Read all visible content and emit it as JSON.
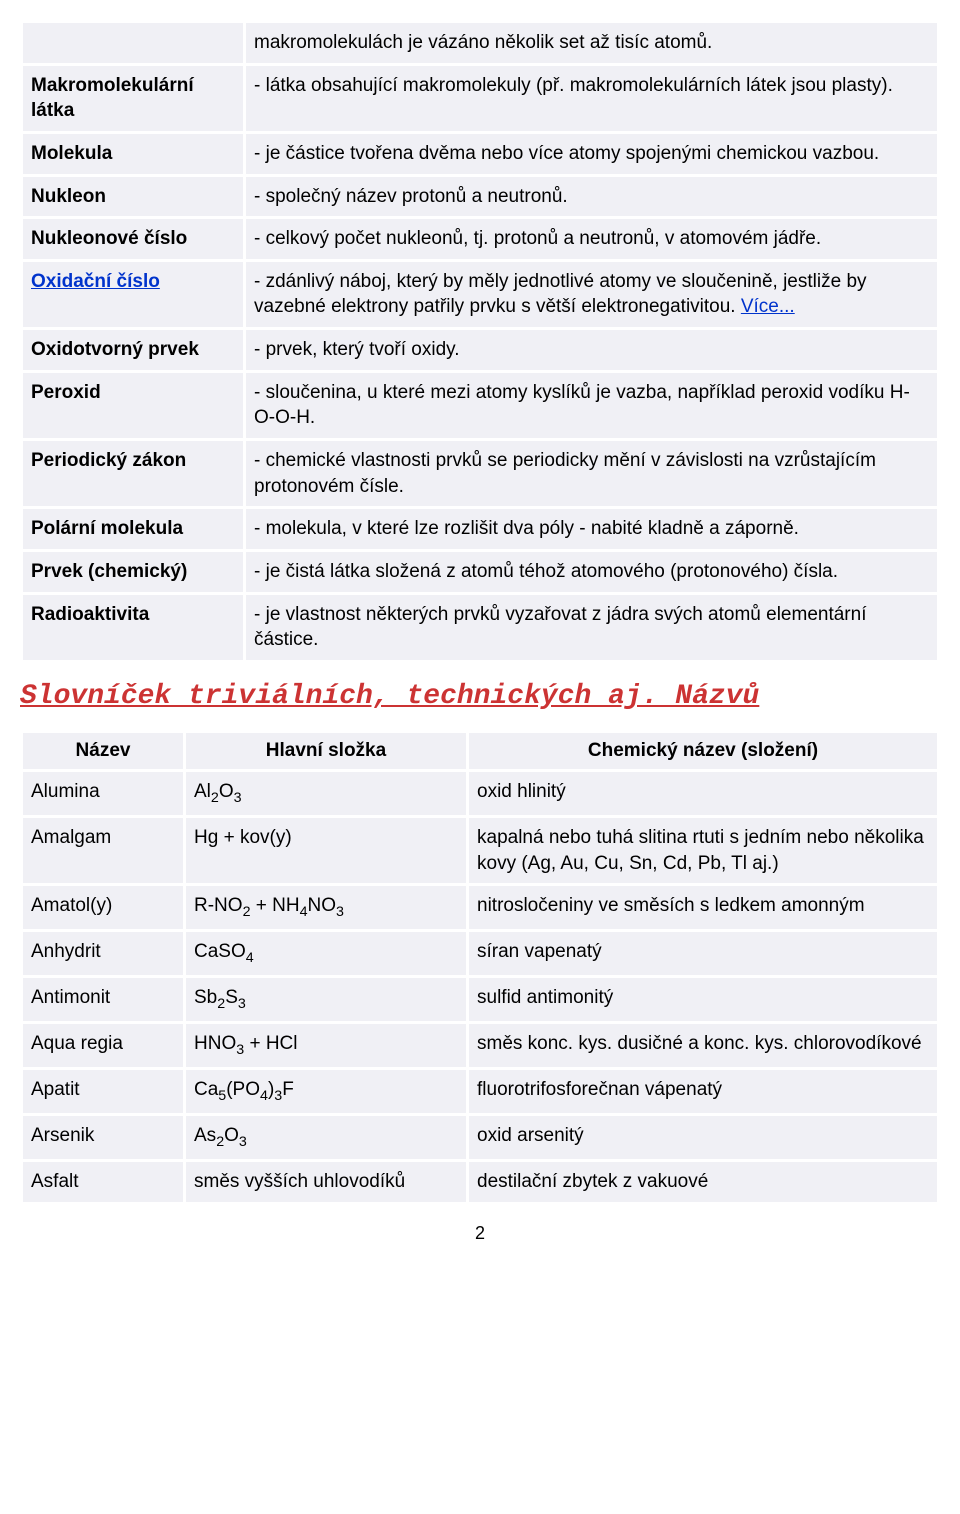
{
  "definitions": [
    {
      "term": "",
      "def": "makromolekulách je vázáno několik set až tisíc atomů.",
      "termEmpty": true
    },
    {
      "term": "Makromolekulární látka",
      "def": "- látka obsahující makromolekuly (př. makromolekulárních látek jsou plasty)."
    },
    {
      "term": "Molekula",
      "def": "- je částice tvořena dvěma nebo více atomy spojenými chemickou vazbou."
    },
    {
      "term": "Nukleon",
      "def": "- společný název protonů a neutronů."
    },
    {
      "term": "Nukleonové číslo",
      "def": "- celkový počet nukleonů, tj. protonů a neutronů, v atomovém jádře."
    },
    {
      "term": "Oxidační číslo",
      "termLink": true,
      "def": "- zdánlivý náboj, který by měly jednotlivé atomy ve sloučenině, jestliže by vazebné elektrony patřily prvku s větší elektronegativitou. ",
      "suffixLink": "Více..."
    },
    {
      "term": "Oxidotvorný prvek",
      "def": "- prvek, který tvoří oxidy."
    },
    {
      "term": "Peroxid",
      "def": "- sloučenina, u které mezi atomy kyslíků je vazba, například peroxid vodíku H-O-O-H."
    },
    {
      "term": "Periodický zákon",
      "def": "- chemické vlastnosti prvků se periodicky mění v závislosti na vzrůstajícím protonovém čísle."
    },
    {
      "term": "Polární molekula",
      "def": "- molekula, v které lze rozlišit dva póly - nabité kladně a záporně."
    },
    {
      "term": "Prvek (chemický)",
      "def": "- je čistá látka složená z atomů téhož atomového (protonového) čísla."
    },
    {
      "term": "Radioaktivita",
      "def": "- je vlastnost některých prvků vyzařovat z jádra svých atomů elementární částice."
    }
  ],
  "sectionTitle": "Slovníček triviálních, technických aj. Názvů",
  "sectionColor": "#cc3333",
  "trivHeaders": [
    "Název",
    "Hlavní složka",
    "Chemický název (složení)"
  ],
  "trivRows": [
    {
      "name": "Alumina",
      "formula": "Al|2|O|3|",
      "chem": "oxid hlinitý"
    },
    {
      "name": "Amalgam",
      "formula": "Hg + kov(y)",
      "chem": "kapalná nebo tuhá slitina rtuti s jedním nebo několika kovy (Ag, Au, Cu, Sn, Cd, Pb, Tl aj.)"
    },
    {
      "name": "Amatol(y)",
      "formula": "R-NO|2| + NH|4|NO|3|",
      "chem": "nitrosločeniny ve směsích s ledkem amonným"
    },
    {
      "name": "Anhydrit",
      "formula": "CaSO|4|",
      "chem": "síran vapenatý"
    },
    {
      "name": "Antimonit",
      "formula": "Sb|2|S|3|",
      "chem": "sulfid antimonitý"
    },
    {
      "name": "Aqua regia",
      "formula": "HNO|3| + HCl",
      "chem": "směs konc. kys. dusičné a konc. kys. chlorovodíkové"
    },
    {
      "name": "Apatit",
      "formula": "Ca|5|(PO|4|)|3|F",
      "chem": "fluorotrifosforečnan vápenatý"
    },
    {
      "name": "Arsenik",
      "formula": "As|2|O|3|",
      "chem": "oxid arsenitý"
    },
    {
      "name": "Asfalt",
      "formula": "směs vyšších uhlovodíků",
      "chem": "destilační zbytek z vakuové"
    }
  ],
  "pageNumber": "2",
  "colors": {
    "cellBg": "#f0f0f5",
    "link": "#0033cc"
  }
}
